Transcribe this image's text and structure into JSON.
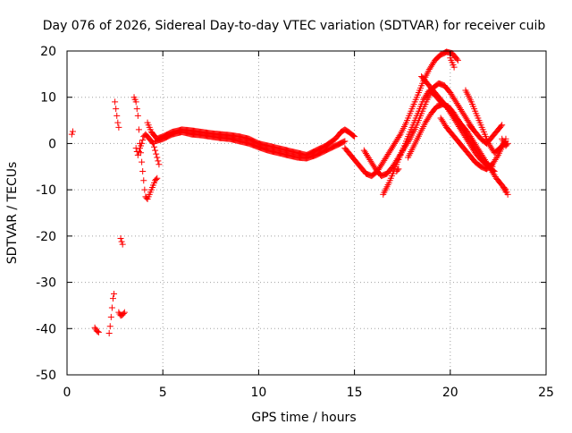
{
  "chart_data": {
    "type": "scatter",
    "title": "Day 076 of 2026, Sidereal Day-to-day VTEC variation (SDTVAR) for receiver cuib",
    "xlabel": "GPS time / hours",
    "ylabel": "SDTVAR / TECUs",
    "xlim": [
      0,
      25
    ],
    "ylim": [
      -50,
      20
    ],
    "xticks": [
      0,
      5,
      10,
      15,
      20,
      25
    ],
    "yticks": [
      -50,
      -40,
      -30,
      -20,
      -10,
      0,
      10,
      20
    ],
    "grid": true,
    "marker": "+",
    "color": "#ff0000",
    "series": [
      {
        "name": "SDTVAR",
        "segments": [
          [
            [
              0.25,
              2.0
            ],
            [
              0.3,
              2.6
            ]
          ],
          [
            [
              1.45,
              -39.8
            ],
            [
              1.55,
              -40.5
            ],
            [
              1.65,
              -40.8
            ]
          ],
          [
            [
              2.2,
              -41.0
            ],
            [
              2.25,
              -39.5
            ],
            [
              2.3,
              -37.5
            ],
            [
              2.35,
              -35.5
            ],
            [
              2.4,
              -33.5
            ],
            [
              2.45,
              -32.5
            ]
          ],
          [
            [
              2.5,
              9.0
            ],
            [
              2.55,
              7.5
            ],
            [
              2.6,
              6.0
            ],
            [
              2.65,
              4.5
            ],
            [
              2.7,
              3.5
            ]
          ],
          [
            [
              2.7,
              -36.5
            ],
            [
              2.8,
              -37.2
            ],
            [
              2.9,
              -37.0
            ],
            [
              3.0,
              -36.5
            ]
          ],
          [
            [
              2.8,
              -20.5
            ],
            [
              2.85,
              -21.2
            ],
            [
              2.9,
              -21.8
            ]
          ],
          [
            [
              3.5,
              10.0
            ],
            [
              3.6,
              9.0
            ],
            [
              3.7,
              6.0
            ],
            [
              3.75,
              3.0
            ],
            [
              3.8,
              0.0
            ],
            [
              3.85,
              -2.0
            ],
            [
              3.9,
              -4.0
            ],
            [
              3.95,
              -6.0
            ],
            [
              4.0,
              -8.0
            ],
            [
              4.05,
              -10.0
            ],
            [
              4.1,
              -11.5
            ],
            [
              4.2,
              -12.0
            ],
            [
              4.3,
              -11.0
            ],
            [
              4.4,
              -10.0
            ],
            [
              4.5,
              -9.0
            ],
            [
              4.6,
              -8.0
            ],
            [
              4.7,
              -7.5
            ]
          ],
          [
            [
              3.6,
              -1.0
            ],
            [
              3.7,
              -2.5
            ],
            [
              3.8,
              -1.0
            ],
            [
              3.9,
              0.0
            ],
            [
              4.0,
              1.5
            ],
            [
              4.1,
              2.0
            ],
            [
              4.3,
              1.0
            ],
            [
              4.5,
              0.0
            ],
            [
              4.6,
              -1.5
            ],
            [
              4.7,
              -3.0
            ],
            [
              4.8,
              -4.5
            ]
          ],
          [
            [
              4.2,
              4.5
            ],
            [
              4.3,
              3.5
            ],
            [
              4.4,
              2.5
            ],
            [
              4.5,
              2.0
            ],
            [
              4.6,
              1.5
            ],
            [
              4.7,
              1.0
            ],
            [
              4.8,
              1.2
            ],
            [
              5.0,
              1.5
            ],
            [
              5.5,
              2.5
            ],
            [
              6.0,
              3.0
            ],
            [
              6.5,
              2.8
            ],
            [
              7.0,
              2.5
            ],
            [
              7.5,
              2.2
            ],
            [
              8.0,
              2.0
            ],
            [
              8.5,
              1.8
            ],
            [
              9.0,
              1.5
            ],
            [
              9.5,
              1.0
            ],
            [
              10.0,
              0.0
            ],
            [
              10.5,
              -0.5
            ],
            [
              11.0,
              -1.0
            ],
            [
              11.5,
              -1.5
            ],
            [
              12.0,
              -2.0
            ],
            [
              12.5,
              -2.5
            ],
            [
              13.0,
              -1.5
            ],
            [
              13.5,
              -0.5
            ],
            [
              14.0,
              1.0
            ],
            [
              14.3,
              2.5
            ],
            [
              14.5,
              3.0
            ],
            [
              14.7,
              2.5
            ],
            [
              15.0,
              1.5
            ]
          ],
          [
            [
              4.6,
              0.5
            ],
            [
              5.0,
              1.0
            ],
            [
              5.5,
              2.0
            ],
            [
              6.0,
              2.5
            ],
            [
              6.5,
              2.0
            ],
            [
              7.0,
              1.8
            ],
            [
              7.5,
              1.5
            ],
            [
              8.0,
              1.2
            ],
            [
              8.5,
              1.0
            ],
            [
              9.0,
              0.5
            ],
            [
              9.5,
              0.0
            ],
            [
              10.0,
              -0.8
            ],
            [
              10.5,
              -1.5
            ],
            [
              11.0,
              -2.0
            ],
            [
              11.5,
              -2.5
            ],
            [
              12.0,
              -3.0
            ],
            [
              12.5,
              -3.2
            ],
            [
              13.0,
              -2.5
            ],
            [
              13.5,
              -1.5
            ],
            [
              14.0,
              -0.5
            ],
            [
              14.5,
              0.5
            ]
          ],
          [
            [
              14.5,
              -1.0
            ],
            [
              14.7,
              -2.0
            ],
            [
              15.0,
              -3.5
            ],
            [
              15.3,
              -5.0
            ],
            [
              15.6,
              -6.5
            ],
            [
              15.9,
              -7.0
            ],
            [
              16.2,
              -6.0
            ],
            [
              16.5,
              -4.0
            ],
            [
              16.8,
              -2.0
            ],
            [
              17.1,
              0.0
            ],
            [
              17.4,
              2.0
            ],
            [
              17.7,
              4.5
            ],
            [
              18.0,
              7.5
            ],
            [
              18.3,
              10.5
            ],
            [
              18.6,
              13.5
            ],
            [
              18.9,
              16.0
            ],
            [
              19.2,
              18.0
            ],
            [
              19.5,
              19.2
            ],
            [
              19.8,
              19.8
            ],
            [
              20.1,
              19.5
            ],
            [
              20.4,
              18.0
            ]
          ],
          [
            [
              15.5,
              -1.5
            ],
            [
              15.8,
              -3.5
            ],
            [
              16.1,
              -5.5
            ],
            [
              16.4,
              -7.0
            ],
            [
              16.7,
              -6.5
            ],
            [
              17.0,
              -5.0
            ],
            [
              17.3,
              -3.0
            ],
            [
              17.6,
              -1.0
            ],
            [
              17.9,
              1.0
            ],
            [
              18.2,
              3.5
            ],
            [
              18.5,
              6.5
            ],
            [
              18.8,
              9.5
            ],
            [
              19.1,
              12.0
            ],
            [
              19.4,
              13.0
            ],
            [
              19.7,
              12.5
            ],
            [
              20.0,
              11.0
            ],
            [
              20.3,
              9.0
            ],
            [
              20.6,
              7.0
            ],
            [
              20.9,
              5.0
            ],
            [
              21.2,
              3.0
            ]
          ],
          [
            [
              16.5,
              -11.0
            ],
            [
              16.8,
              -8.5
            ],
            [
              17.1,
              -5.5
            ],
            [
              17.4,
              -2.5
            ],
            [
              17.7,
              0.5
            ],
            [
              18.0,
              3.5
            ],
            [
              18.3,
              6.5
            ],
            [
              18.6,
              9.5
            ],
            [
              18.9,
              11.5
            ],
            [
              19.2,
              10.5
            ],
            [
              19.5,
              9.0
            ],
            [
              19.8,
              8.0
            ],
            [
              20.1,
              6.0
            ],
            [
              20.4,
              4.0
            ],
            [
              20.7,
              2.0
            ],
            [
              21.0,
              0.0
            ],
            [
              21.3,
              -2.0
            ],
            [
              21.6,
              -3.5
            ],
            [
              21.9,
              -4.5
            ],
            [
              22.2,
              -5.0
            ]
          ],
          [
            [
              17.8,
              -3.0
            ],
            [
              18.1,
              -0.5
            ],
            [
              18.4,
              2.0
            ],
            [
              18.7,
              4.5
            ],
            [
              19.0,
              6.5
            ],
            [
              19.3,
              8.0
            ],
            [
              19.6,
              8.5
            ],
            [
              19.9,
              8.0
            ],
            [
              20.2,
              6.5
            ],
            [
              20.5,
              4.5
            ],
            [
              20.8,
              2.5
            ],
            [
              21.1,
              0.5
            ],
            [
              21.4,
              -1.5
            ],
            [
              21.7,
              -3.5
            ],
            [
              22.0,
              -5.0
            ],
            [
              22.3,
              -6.0
            ]
          ],
          [
            [
              18.5,
              14.5
            ],
            [
              18.8,
              13.0
            ],
            [
              19.1,
              11.5
            ],
            [
              19.4,
              10.0
            ],
            [
              19.7,
              8.5
            ],
            [
              20.0,
              7.0
            ],
            [
              20.3,
              5.5
            ],
            [
              20.6,
              4.0
            ],
            [
              20.9,
              2.5
            ],
            [
              21.2,
              0.5
            ],
            [
              21.5,
              -1.5
            ],
            [
              21.8,
              -3.5
            ],
            [
              22.1,
              -5.5
            ],
            [
              22.4,
              -7.5
            ],
            [
              22.7,
              -9.0
            ],
            [
              22.9,
              -10.5
            ]
          ],
          [
            [
              19.5,
              5.5
            ],
            [
              19.8,
              3.5
            ],
            [
              20.1,
              2.0
            ],
            [
              20.4,
              0.5
            ],
            [
              20.7,
              -1.0
            ],
            [
              21.0,
              -2.5
            ],
            [
              21.3,
              -4.0
            ],
            [
              21.6,
              -5.0
            ],
            [
              21.9,
              -5.5
            ],
            [
              22.2,
              -4.5
            ],
            [
              22.5,
              -2.5
            ],
            [
              22.8,
              0.0
            ],
            [
              22.9,
              1.0
            ]
          ],
          [
            [
              20.8,
              11.5
            ],
            [
              21.1,
              9.0
            ],
            [
              21.4,
              6.0
            ],
            [
              21.7,
              3.0
            ],
            [
              22.0,
              0.0
            ],
            [
              22.3,
              -2.0
            ],
            [
              22.6,
              -1.0
            ],
            [
              22.9,
              0.5
            ]
          ],
          [
            [
              21.0,
              4.0
            ],
            [
              21.3,
              2.5
            ],
            [
              21.6,
              1.0
            ],
            [
              21.9,
              0.0
            ],
            [
              22.2,
              1.5
            ],
            [
              22.5,
              3.0
            ],
            [
              22.7,
              4.0
            ]
          ],
          [
            [
              17.2,
              -6.0
            ],
            [
              17.3,
              -5.5
            ]
          ],
          [
            [
              20.0,
              18.5
            ],
            [
              20.1,
              17.5
            ],
            [
              20.2,
              16.5
            ]
          ],
          [
            [
              22.8,
              -9.5
            ],
            [
              22.9,
              -10.0
            ],
            [
              23.0,
              -11.0
            ]
          ],
          [
            [
              22.7,
              1.0
            ],
            [
              22.9,
              -0.5
            ],
            [
              23.0,
              0.0
            ]
          ]
        ]
      }
    ]
  }
}
